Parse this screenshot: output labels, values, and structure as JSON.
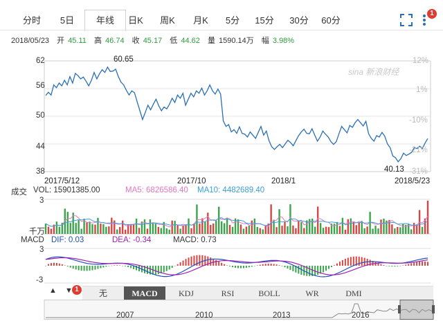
{
  "tabs": [
    {
      "label": "分时",
      "active": false
    },
    {
      "label": "5日",
      "active": false
    },
    {
      "label": "年线",
      "active": true
    },
    {
      "label": "日K",
      "active": false
    },
    {
      "label": "周K",
      "active": false
    },
    {
      "label": "月K",
      "active": false
    },
    {
      "label": "5分",
      "active": false
    },
    {
      "label": "15分",
      "active": false
    },
    {
      "label": "30分",
      "active": false
    },
    {
      "label": "60分",
      "active": false
    }
  ],
  "toolbar": {
    "fullscreen_icon": "fullscreen-icon",
    "more_icon": "more-vertical-icon",
    "badge": "1"
  },
  "quote": {
    "date": "2018/05/23",
    "open_label": "开",
    "open": "45.11",
    "high_label": "高",
    "high": "46.74",
    "close_label": "收",
    "close": "45.17",
    "low_label": "低",
    "low": "44.62",
    "vol_label": "量",
    "vol": "1590.14万",
    "chg_label": "幅",
    "chg": "3.98%"
  },
  "watermark": "sina 新浪财经",
  "price_chart": {
    "y_ticks": [
      "62",
      "56",
      "50",
      "44",
      "38"
    ],
    "pct_ticks": [
      "12%",
      "1%",
      "-10%",
      "-21%",
      "-31%"
    ],
    "max_label": "60.65",
    "min_label": "40.13",
    "x_ticks": [
      "2017/5/12",
      "2017/10",
      "2018/1",
      "2018/5/23"
    ]
  },
  "volume_chart": {
    "name": "成交",
    "vol": "VOL: 15901385.00",
    "ma5": "MA5: 6826586.40",
    "ma10": "MA10: 4482689.40",
    "y_top": "3",
    "unit": "千万"
  },
  "macd_chart": {
    "name": "MACD",
    "dif": "DIF: 0.03",
    "dea": "DEA: -0.34",
    "macd": "MACD: 0.73",
    "y_top": "3",
    "y_bottom": "-3"
  },
  "indicators": {
    "up_arrow": "▲",
    "down_arrow": "▼",
    "badge": "1",
    "buttons": [
      {
        "label": "无",
        "active": false
      },
      {
        "label": "MACD",
        "active": true
      },
      {
        "label": "KDJ",
        "active": false
      },
      {
        "label": "RSI",
        "active": false
      },
      {
        "label": "BOLL",
        "active": false
      },
      {
        "label": "WR",
        "active": false
      },
      {
        "label": "DMI",
        "active": false
      }
    ]
  },
  "navigator": {
    "x_ticks": [
      "2007",
      "2010",
      "2013",
      "2016"
    ]
  },
  "colors": {
    "price_line": "#2a6fb5",
    "up": "#d64541",
    "down": "#3aa54a",
    "ma5": "#e377c2",
    "ma10": "#3a9fd8",
    "dif": "#1f4fbf",
    "dea": "#a020b0"
  },
  "chart_data": {
    "type": "line",
    "title": "",
    "xlabel": "",
    "ylabel": "",
    "ylim": [
      38,
      62
    ],
    "x_range": [
      "2017/5/12",
      "2018/5/23"
    ],
    "series": [
      {
        "values": [
          54.5,
          55.2,
          54.6,
          56.8,
          56.2,
          57.2,
          56.6,
          57.8,
          56.8,
          58.6,
          57.2,
          59.3,
          58.8,
          58.1,
          58.5,
          57.6,
          56.6,
          57.8,
          59.5,
          58.1,
          59.2,
          60.1,
          59.5,
          60.65,
          59.7,
          59.8,
          60.2,
          58.6,
          57.4,
          56.8,
          55.6,
          54.6,
          55.5,
          55.1,
          53.1,
          51.2,
          49.3,
          50.8,
          52.4,
          51.4,
          52.6,
          53.7,
          52.3,
          51.2,
          52.0,
          51.6,
          52.6,
          53.9,
          53.0,
          54.6,
          53.9,
          55.0,
          52.4,
          53.7,
          55.0,
          54.2,
          55.5,
          55.0,
          56.1,
          54.6,
          55.5,
          56.8,
          55.5,
          54.8,
          55.9,
          54.8,
          49.0,
          47.8,
          48.2,
          46.6,
          47.1,
          46.3,
          47.7,
          46.3,
          46.1,
          45.5,
          46.6,
          45.9,
          45.2,
          46.5,
          47.8,
          45.9,
          46.8,
          44.7,
          43.4,
          42.8,
          43.4,
          43.9,
          43.2,
          44.0,
          44.8,
          44.3,
          43.6,
          44.7,
          45.8,
          46.6,
          47.2,
          46.3,
          46.2,
          47.3,
          45.9,
          44.6,
          45.5,
          46.8,
          46.1,
          45.5,
          44.5,
          43.9,
          44.5,
          46.2,
          47.8,
          47.1,
          46.4,
          48.0,
          47.6,
          48.6,
          49.3,
          48.6,
          47.9,
          48.9,
          46.2,
          45.2,
          44.6,
          45.8,
          45.5,
          46.5,
          45.7,
          44.0,
          43.2,
          41.4,
          41.0,
          40.13,
          40.8,
          42.0,
          41.5,
          41.8,
          42.2,
          43.2,
          43.0,
          43.5,
          43.0,
          44.2,
          45.17
        ]
      }
    ]
  }
}
